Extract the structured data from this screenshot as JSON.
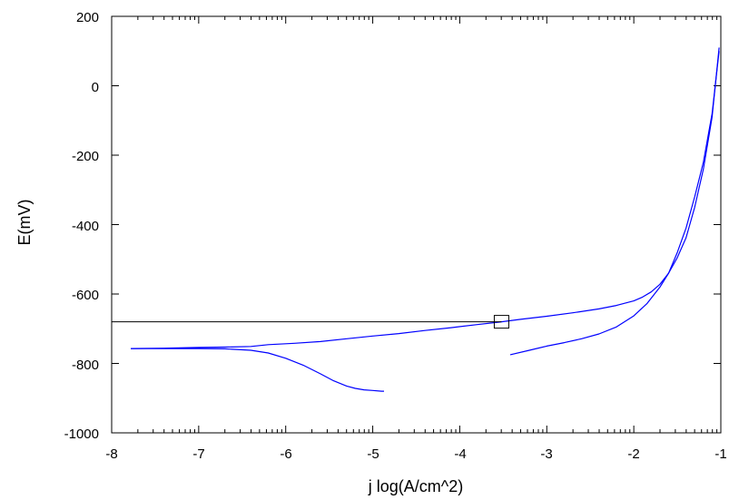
{
  "chart_data": {
    "type": "line",
    "xlabel": "j log(A/cm^2)",
    "ylabel": "E(mV)",
    "xlim": [
      -8,
      -1
    ],
    "ylim": [
      -1000,
      200
    ],
    "x_ticks": [
      -8,
      -7,
      -6,
      -5,
      -4,
      -3,
      -2,
      -1
    ],
    "y_ticks": [
      -1000,
      -800,
      -600,
      -400,
      -200,
      0,
      200
    ],
    "x_minor_ticks": "logarithmic, 9 per decade",
    "grid": false,
    "legend": "none",
    "series": [
      {
        "color": "#0000ff",
        "x": [
          -7.78,
          -7.3,
          -7.0,
          -6.7,
          -6.4,
          -6.2,
          -6.0,
          -5.8,
          -5.6,
          -5.45,
          -5.3,
          -5.2,
          -5.1,
          -5.0,
          -4.9,
          -4.87
        ],
        "y": [
          -757,
          -757,
          -757,
          -758,
          -762,
          -770,
          -785,
          -805,
          -830,
          -850,
          -865,
          -872,
          -876,
          -878,
          -880,
          -880
        ]
      },
      {
        "color": "#0000ff",
        "x": [
          -7.78,
          -7.4,
          -7.0,
          -6.7,
          -6.4,
          -6.2,
          -5.9,
          -5.6,
          -5.3,
          -5.0,
          -4.7,
          -4.4,
          -4.1,
          -3.8,
          -3.55,
          -3.3,
          -3.0,
          -2.7,
          -2.4,
          -2.2,
          -2.0,
          -1.9,
          -1.8,
          -1.7,
          -1.6,
          -1.5,
          -1.4,
          -1.3,
          -1.2,
          -1.1,
          -1.02
        ],
        "y": [
          -757,
          -756,
          -754,
          -753,
          -751,
          -746,
          -742,
          -737,
          -729,
          -721,
          -714,
          -705,
          -697,
          -688,
          -681,
          -673,
          -664,
          -654,
          -643,
          -633,
          -620,
          -609,
          -594,
          -572,
          -540,
          -495,
          -438,
          -350,
          -240,
          -90,
          110
        ]
      },
      {
        "color": "#0000ff",
        "x": [
          -3.42,
          -3.2,
          -3.0,
          -2.8,
          -2.6,
          -2.4,
          -2.2,
          -2.0,
          -1.85,
          -1.7,
          -1.6,
          -1.5,
          -1.4,
          -1.3,
          -1.2,
          -1.1,
          -1.02
        ],
        "y": [
          -775,
          -762,
          -750,
          -740,
          -729,
          -715,
          -695,
          -663,
          -628,
          -580,
          -540,
          -480,
          -410,
          -320,
          -220,
          -80,
          100
        ]
      }
    ],
    "annotation": {
      "marker": "square",
      "x": -3.52,
      "y": -680,
      "line_from_x": -8,
      "line_color": "#000000"
    }
  }
}
